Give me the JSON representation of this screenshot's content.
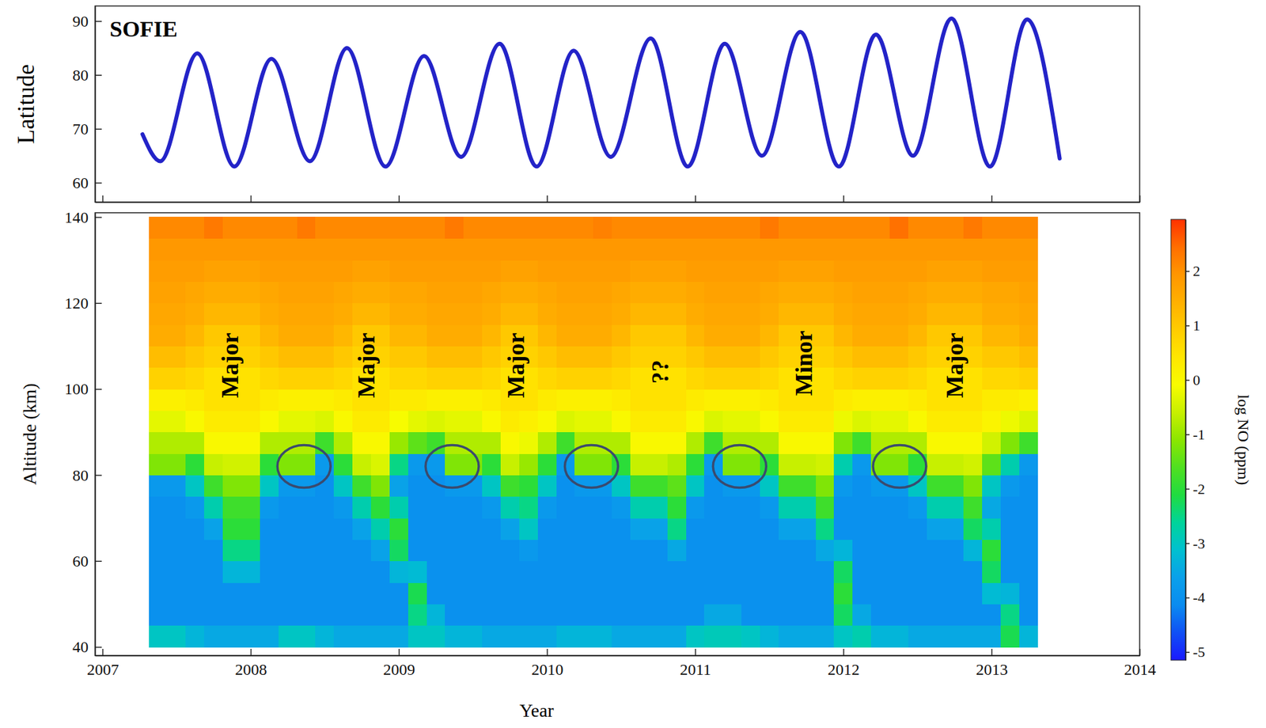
{
  "chart_data": [
    {
      "type": "line",
      "title": "SOFIE",
      "y_label": "Latitude",
      "color": "#2323c8",
      "tick_labels": "y",
      "x": [
        2007.27,
        2007.39,
        2007.64,
        2007.89,
        2008.14,
        2008.4,
        2008.65,
        2008.91,
        2009.17,
        2009.42,
        2009.68,
        2009.93,
        2010.18,
        2010.43,
        2010.7,
        2010.95,
        2011.2,
        2011.45,
        2011.71,
        2011.97,
        2012.22,
        2012.47,
        2012.73,
        2012.99,
        2013.24,
        2013.46
      ],
      "values": [
        69,
        64,
        84,
        63,
        83,
        64,
        85,
        63,
        83.5,
        64.8,
        85.8,
        63,
        84.5,
        64.8,
        86.8,
        63,
        85.8,
        65,
        88,
        63,
        87.5,
        65,
        90.5,
        63,
        90.3,
        64.5
      ],
      "xlim": [
        2006.95,
        2014
      ],
      "xticks": [
        2007,
        2008,
        2009,
        2010,
        2011,
        2012,
        2013,
        2014
      ],
      "ylim": [
        56.4,
        92.8
      ],
      "yticks": [
        60,
        70,
        80,
        90
      ]
    },
    {
      "type": "heatmap",
      "x_label": "Year",
      "y_label": "Altitude (km)",
      "colorbar_label": "log NO (ppm)",
      "x": [
        2007.375,
        2007.5,
        2007.625,
        2007.75,
        2007.875,
        2008,
        2008.125,
        2008.25,
        2008.375,
        2008.5,
        2008.625,
        2008.75,
        2008.875,
        2009,
        2009.125,
        2009.25,
        2009.375,
        2009.5,
        2009.625,
        2009.75,
        2009.875,
        2010,
        2010.125,
        2010.25,
        2010.375,
        2010.5,
        2010.625,
        2010.75,
        2010.875,
        2011,
        2011.125,
        2011.25,
        2011.375,
        2011.5,
        2011.625,
        2011.75,
        2011.875,
        2012,
        2012.125,
        2012.25,
        2012.375,
        2012.5,
        2012.625,
        2012.75,
        2012.875,
        2013,
        2013.125,
        2013.25
      ],
      "y": [
        42.5,
        47.5,
        52.5,
        57.5,
        62.5,
        67.5,
        72.5,
        77.5,
        82.5,
        87.5,
        92.5,
        97.5,
        102.5,
        107.5,
        112.5,
        117.5,
        122.5,
        127.5,
        132.5,
        137.5
      ],
      "z": [
        [
          -3.0,
          -3.0,
          -3.3,
          -3.5,
          -3.5,
          -3.5,
          -3.5,
          -3.0,
          -3.0,
          -3.3,
          -3.5,
          -3.5,
          -3.5,
          -3.5,
          -3.0,
          -3.0,
          -3.3,
          -3.3,
          -3.5,
          -3.5,
          -3.5,
          -3.5,
          -3.3,
          -3.3,
          -3.3,
          -3.5,
          -3.5,
          -3.5,
          -3.5,
          -3.0,
          -2.9,
          -2.9,
          -3.0,
          -3.3,
          -3.5,
          -3.5,
          -3.5,
          -3.0,
          -2.8,
          -3.3,
          -3.3,
          -3.5,
          -3.5,
          -3.5,
          -3.5,
          -3.5,
          -2.2,
          -3.3
        ],
        [
          -4,
          -4,
          -4,
          -4,
          -4,
          -4,
          -4,
          -4,
          -4,
          -4,
          -4,
          -4,
          -4,
          -4,
          -2.5,
          -3.3,
          -4,
          -4,
          -4,
          -4,
          -4,
          -4,
          -4,
          -4,
          -4,
          -4,
          -4,
          -4,
          -4,
          -4,
          -3.5,
          -3.5,
          -4,
          -4,
          -4,
          -4,
          -4,
          -2.3,
          -3.5,
          -4,
          -4,
          -4,
          -4,
          -4,
          -4,
          -4,
          -2.5,
          -4
        ],
        [
          -4,
          -4,
          -4,
          -4,
          -4,
          -4,
          -4,
          -4,
          -4,
          -4,
          -4,
          -4,
          -4,
          -4,
          -2.2,
          -4,
          -4,
          -4,
          -4,
          -4,
          -4,
          -4,
          -4,
          -4,
          -4,
          -4,
          -4,
          -4,
          -4,
          -4,
          -4,
          -4,
          -4,
          -4,
          -4,
          -4,
          -4,
          -2.0,
          -4,
          -4,
          -4,
          -4,
          -4,
          -4,
          -4,
          -3.2,
          -3.3,
          -4
        ],
        [
          -4,
          -4,
          -4,
          -4,
          -3.3,
          -3.3,
          -4,
          -4,
          -4,
          -4,
          -4,
          -4,
          -4,
          -3.3,
          -3.2,
          -4,
          -4,
          -4,
          -4,
          -4,
          -4,
          -4,
          -4,
          -4,
          -4,
          -4,
          -4,
          -4,
          -4,
          -4,
          -4,
          -4,
          -4,
          -4,
          -4,
          -4,
          -4,
          -2.3,
          -4,
          -4,
          -4,
          -4,
          -4,
          -4,
          -4,
          -2.3,
          -4,
          -4
        ],
        [
          -4,
          -4,
          -4,
          -4,
          -2.5,
          -2.5,
          -4,
          -4,
          -4,
          -4,
          -4,
          -4,
          -3.6,
          -2.3,
          -4,
          -4,
          -4,
          -4,
          -4,
          -4,
          -3.8,
          -4,
          -4,
          -4,
          -4,
          -4,
          -4,
          -4,
          -3.5,
          -4,
          -4,
          -4,
          -4,
          -4,
          -4,
          -4,
          -3.5,
          -3.3,
          -4,
          -4,
          -4,
          -4,
          -4,
          -4,
          -3.3,
          -2.0,
          -4,
          -4
        ],
        [
          -4,
          -4,
          -4,
          -3.6,
          -2.0,
          -2.0,
          -4,
          -4,
          -4,
          -4,
          -4,
          -3.6,
          -2.8,
          -2.0,
          -4,
          -4,
          -4,
          -4,
          -4,
          -3.6,
          -3.0,
          -4,
          -4,
          -4,
          -4,
          -4,
          -3.6,
          -3.6,
          -2.5,
          -4,
          -4,
          -4,
          -4,
          -4,
          -3.6,
          -3.6,
          -2.5,
          -4,
          -4,
          -4,
          -4,
          -4,
          -3.6,
          -3.6,
          -2.3,
          -2.8,
          -4,
          -4
        ],
        [
          -4,
          -4,
          -3.8,
          -2.8,
          -1.8,
          -1.8,
          -3.8,
          -4,
          -4,
          -4,
          -3.8,
          -2.8,
          -2.0,
          -2.8,
          -4,
          -4,
          -4,
          -4,
          -3.8,
          -2.8,
          -2.5,
          -3.8,
          -4,
          -4,
          -4,
          -3.8,
          -2.8,
          -2.8,
          -2.0,
          -3.8,
          -4,
          -4,
          -4,
          -3.8,
          -2.8,
          -2.8,
          -1.8,
          -4,
          -4,
          -4,
          -4,
          -3.8,
          -2.8,
          -2.8,
          -1.8,
          -3.5,
          -4,
          -4
        ],
        [
          -3.8,
          -3.8,
          -3.0,
          -1.8,
          -1.2,
          -1.2,
          -3.0,
          -3.8,
          -3.8,
          -4,
          -3.0,
          -1.8,
          -1.2,
          -3.6,
          -4,
          -4,
          -3.8,
          -3.8,
          -3.0,
          -1.8,
          -2.0,
          -3.0,
          -4,
          -3.8,
          -3.8,
          -3.0,
          -1.8,
          -1.8,
          -1.5,
          -3.0,
          -4,
          -3.8,
          -3.8,
          -3.0,
          -1.8,
          -1.8,
          -1.2,
          -3.8,
          -4,
          -3.8,
          -3.8,
          -3.0,
          -1.8,
          -1.8,
          -1.2,
          -3.0,
          -3.8,
          -4
        ],
        [
          -1.2,
          -1.2,
          -2.0,
          -0.6,
          -0.5,
          -0.5,
          -2.0,
          -1.2,
          -1.2,
          -3.8,
          -2.0,
          -0.6,
          -0.4,
          -2.5,
          -3.8,
          -3.8,
          -1.2,
          -1.2,
          -2.0,
          -0.6,
          -1.0,
          -2.0,
          -3.8,
          -1.2,
          -1.2,
          -2.0,
          -0.6,
          -0.6,
          -0.8,
          -2.0,
          -3.8,
          -1.2,
          -1.2,
          -2.0,
          -0.6,
          -0.6,
          -0.5,
          -2.8,
          -3.8,
          -1.2,
          -1.2,
          -2.0,
          -0.6,
          -0.6,
          -0.5,
          -1.5,
          -2.8,
          -3.8
        ],
        [
          -0.8,
          -0.8,
          -0.8,
          0,
          0,
          0,
          -0.8,
          -0.8,
          -0.8,
          -1.8,
          -0.8,
          0,
          0,
          -1.0,
          -1.5,
          -1.8,
          -0.8,
          -0.8,
          -0.8,
          0,
          -0.2,
          -0.8,
          -1.8,
          -0.8,
          -0.8,
          -0.8,
          0,
          0,
          0,
          -0.8,
          -1.8,
          -0.8,
          -0.8,
          -0.8,
          0,
          0,
          0,
          -1.2,
          -1.8,
          -0.8,
          -0.8,
          -0.8,
          0,
          0,
          0,
          -0.5,
          -1.2,
          -1.8
        ],
        [
          -0.3,
          -0.3,
          0,
          0.3,
          0.3,
          0.3,
          0,
          -0.3,
          -0.3,
          -0.4,
          0,
          0.3,
          0.3,
          -0.1,
          -0.3,
          -0.4,
          -0.3,
          -0.3,
          0,
          0.3,
          0.2,
          0,
          -0.4,
          -0.3,
          -0.3,
          0,
          0.3,
          0.3,
          0.3,
          0,
          -0.4,
          -0.3,
          -0.3,
          0,
          0.3,
          0.3,
          0.3,
          -0.2,
          -0.4,
          -0.3,
          -0.3,
          0,
          0.3,
          0.3,
          0.3,
          0.1,
          -0.2,
          -0.4
        ],
        [
          0.2,
          0.2,
          0.3,
          0.5,
          0.5,
          0.5,
          0.3,
          0.2,
          0.2,
          0.2,
          0.3,
          0.5,
          0.5,
          0.3,
          0.3,
          0.2,
          0.2,
          0.2,
          0.3,
          0.5,
          0.5,
          0.3,
          0.2,
          0.2,
          0.2,
          0.3,
          0.5,
          0.5,
          0.5,
          0.3,
          0.2,
          0.2,
          0.2,
          0.3,
          0.5,
          0.5,
          0.5,
          0.3,
          0.2,
          0.2,
          0.2,
          0.3,
          0.5,
          0.5,
          0.5,
          0.3,
          0.3,
          0.2
        ],
        [
          0.8,
          0.8,
          0.7,
          0.5,
          0.5,
          0.5,
          0.7,
          0.8,
          0.8,
          0.8,
          0.7,
          0.5,
          0.5,
          0.7,
          0.7,
          0.8,
          0.8,
          0.8,
          0.7,
          0.5,
          0.5,
          0.7,
          0.8,
          0.8,
          0.8,
          0.7,
          0.5,
          0.5,
          0.5,
          0.7,
          0.8,
          0.8,
          0.8,
          0.7,
          0.5,
          0.5,
          0.5,
          0.7,
          0.8,
          0.8,
          0.8,
          0.7,
          0.5,
          0.5,
          0.5,
          0.7,
          0.7,
          0.8
        ],
        [
          1.2,
          1.2,
          1.0,
          0.8,
          0.8,
          0.8,
          1.0,
          1.2,
          1.2,
          1.2,
          1.0,
          0.8,
          0.8,
          1.0,
          1.0,
          1.2,
          1.2,
          1.2,
          1.0,
          0.8,
          0.8,
          1.0,
          1.2,
          1.2,
          1.2,
          1.0,
          0.8,
          0.8,
          0.8,
          1.0,
          1.2,
          1.2,
          1.2,
          1.0,
          0.8,
          0.8,
          0.8,
          1.0,
          1.2,
          1.2,
          1.2,
          1.0,
          0.8,
          0.8,
          0.8,
          1.0,
          1.0,
          1.2
        ],
        [
          1.5,
          1.5,
          1.3,
          1.0,
          1.0,
          1.0,
          1.3,
          1.5,
          1.5,
          1.5,
          1.3,
          1.0,
          1.0,
          1.3,
          1.3,
          1.5,
          1.5,
          1.5,
          1.3,
          1.0,
          1.0,
          1.3,
          1.5,
          1.5,
          1.5,
          1.3,
          1.0,
          1.0,
          1.0,
          1.3,
          1.5,
          1.5,
          1.5,
          1.3,
          1.0,
          1.0,
          1.0,
          1.3,
          1.5,
          1.5,
          1.5,
          1.3,
          1.0,
          1.0,
          1.0,
          1.3,
          1.3,
          1.5
        ],
        [
          1.6,
          1.6,
          1.5,
          1.3,
          1.3,
          1.3,
          1.5,
          1.6,
          1.6,
          1.6,
          1.5,
          1.3,
          1.3,
          1.5,
          1.5,
          1.6,
          1.6,
          1.6,
          1.5,
          1.3,
          1.3,
          1.5,
          1.6,
          1.6,
          1.6,
          1.5,
          1.3,
          1.3,
          1.3,
          1.5,
          1.6,
          1.6,
          1.6,
          1.5,
          1.3,
          1.3,
          1.3,
          1.5,
          1.6,
          1.6,
          1.6,
          1.5,
          1.3,
          1.3,
          1.3,
          1.5,
          1.5,
          1.6
        ],
        [
          1.7,
          1.7,
          1.6,
          1.5,
          1.5,
          1.5,
          1.6,
          1.7,
          1.7,
          1.7,
          1.6,
          1.5,
          1.5,
          1.6,
          1.6,
          1.7,
          1.7,
          1.7,
          1.6,
          1.5,
          1.5,
          1.6,
          1.7,
          1.7,
          1.7,
          1.6,
          1.5,
          1.5,
          1.5,
          1.6,
          1.7,
          1.7,
          1.7,
          1.6,
          1.5,
          1.5,
          1.5,
          1.6,
          1.7,
          1.7,
          1.7,
          1.6,
          1.5,
          1.5,
          1.5,
          1.6,
          1.6,
          1.7
        ],
        [
          1.8,
          1.8,
          1.8,
          1.7,
          1.7,
          1.7,
          1.8,
          1.8,
          1.8,
          1.8,
          1.8,
          1.7,
          1.7,
          1.8,
          1.8,
          1.8,
          1.8,
          1.8,
          1.8,
          1.7,
          1.7,
          1.8,
          1.8,
          1.8,
          1.8,
          1.8,
          1.7,
          1.7,
          1.7,
          1.8,
          1.8,
          1.8,
          1.8,
          1.8,
          1.7,
          1.7,
          1.7,
          1.8,
          1.8,
          1.8,
          1.8,
          1.8,
          1.7,
          1.7,
          1.7,
          1.8,
          1.8,
          1.8
        ],
        [
          1.9,
          1.9,
          1.9,
          1.9,
          1.9,
          1.9,
          1.9,
          1.9,
          1.9,
          1.9,
          1.9,
          1.9,
          1.9,
          1.9,
          1.9,
          1.9,
          1.9,
          1.9,
          1.9,
          1.9,
          1.9,
          1.9,
          1.9,
          1.9,
          1.9,
          1.9,
          1.9,
          1.9,
          1.9,
          1.9,
          1.9,
          1.9,
          1.9,
          1.9,
          1.9,
          1.9,
          1.9,
          1.9,
          1.9,
          1.9,
          1.9,
          1.9,
          1.9,
          1.9,
          1.9,
          1.9,
          1.9,
          1.9
        ],
        [
          2.1,
          2.1,
          2.1,
          2.3,
          2.1,
          2.1,
          2.1,
          2.1,
          2.3,
          2.1,
          2.1,
          2.1,
          2.1,
          2.1,
          2.1,
          2.1,
          2.3,
          2.1,
          2.1,
          2.1,
          2.1,
          2.1,
          2.1,
          2.1,
          2.2,
          2.1,
          2.1,
          2.1,
          2.1,
          2.1,
          2.1,
          2.1,
          2.1,
          2.3,
          2.1,
          2.1,
          2.1,
          2.1,
          2.1,
          2.1,
          2.4,
          2.1,
          2.1,
          2.1,
          2.3,
          2.1,
          2.1,
          2.1
        ]
      ],
      "xlim": [
        2006.95,
        2014
      ],
      "xticks": [
        2007,
        2008,
        2009,
        2010,
        2011,
        2012,
        2013,
        2014
      ],
      "ylim": [
        38,
        141
      ],
      "yticks": [
        40,
        60,
        80,
        100,
        120,
        140
      ],
      "zlim": [
        -5.15,
        2.95
      ],
      "zticks": [
        -5,
        -4,
        -3,
        -2,
        -1,
        0,
        1,
        2
      ],
      "annotations": [
        {
          "text": "Major",
          "x": 2007.86,
          "y": 105.5
        },
        {
          "text": "Major",
          "x": 2008.78,
          "y": 105.5
        },
        {
          "text": "Major",
          "x": 2009.79,
          "y": 105.5
        },
        {
          "text": "??",
          "x": 2010.76,
          "y": 104
        },
        {
          "text": "Minor",
          "x": 2011.73,
          "y": 106
        },
        {
          "text": "Major",
          "x": 2012.75,
          "y": 105.5
        }
      ],
      "ellipses": [
        {
          "x": 2008.36,
          "y": 82
        },
        {
          "x": 2009.36,
          "y": 82
        },
        {
          "x": 2010.3,
          "y": 82
        },
        {
          "x": 2011.3,
          "y": 82
        },
        {
          "x": 2012.38,
          "y": 82
        }
      ]
    }
  ]
}
